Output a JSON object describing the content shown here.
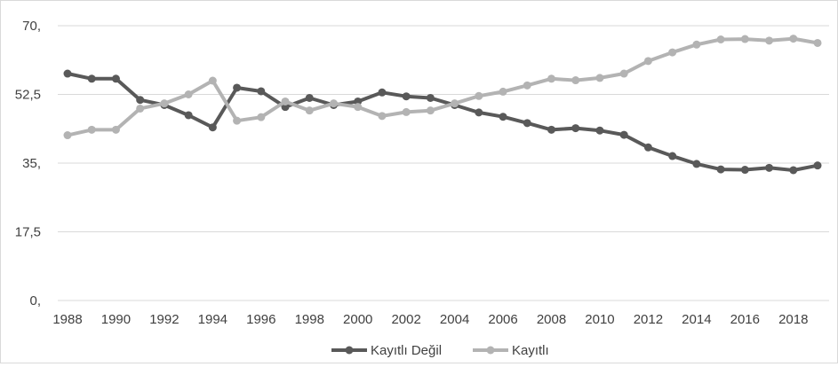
{
  "chart_data": {
    "type": "line",
    "title": "",
    "xlabel": "",
    "ylabel": "",
    "x": [
      1988,
      1989,
      1990,
      1991,
      1992,
      1993,
      1994,
      1995,
      1996,
      1997,
      1998,
      1999,
      2000,
      2001,
      2002,
      2003,
      2004,
      2005,
      2006,
      2007,
      2008,
      2009,
      2010,
      2011,
      2012,
      2013,
      2014,
      2015,
      2016,
      2017,
      2018,
      2019
    ],
    "x_tick_labels": [
      "1988",
      "1990",
      "1992",
      "1994",
      "1996",
      "1998",
      "2000",
      "2002",
      "2004",
      "2006",
      "2008",
      "2010",
      "2012",
      "2014",
      "2016",
      "2018"
    ],
    "y_tick_values": [
      0,
      17.5,
      35,
      52.5,
      70
    ],
    "y_tick_labels": [
      "0,",
      "17,5",
      "35,",
      "52,5",
      "70,"
    ],
    "ylim": [
      0,
      70
    ],
    "grid": "horizontal",
    "legend_position": "bottom",
    "series": [
      {
        "name": "Kayıtlı Değil",
        "color": "#595959",
        "values": [
          57.8,
          56.5,
          56.5,
          51.1,
          49.8,
          47.2,
          44.1,
          54.2,
          53.3,
          49.3,
          51.6,
          49.8,
          50.7,
          53.0,
          52.0,
          51.6,
          49.8,
          47.9,
          46.8,
          45.2,
          43.5,
          43.9,
          43.3,
          42.2,
          39.0,
          36.8,
          34.8,
          33.4,
          33.3,
          33.8,
          33.2,
          34.4
        ]
      },
      {
        "name": "Kayıtlı",
        "color": "#b3b3b3",
        "values": [
          42.1,
          43.5,
          43.5,
          48.9,
          50.2,
          52.5,
          56.0,
          45.8,
          46.7,
          50.7,
          48.4,
          50.2,
          49.3,
          47.0,
          48.0,
          48.4,
          50.2,
          52.1,
          53.2,
          54.8,
          56.5,
          56.1,
          56.7,
          57.8,
          61.0,
          63.2,
          65.2,
          66.5,
          66.6,
          66.2,
          66.7,
          65.6
        ]
      }
    ]
  }
}
